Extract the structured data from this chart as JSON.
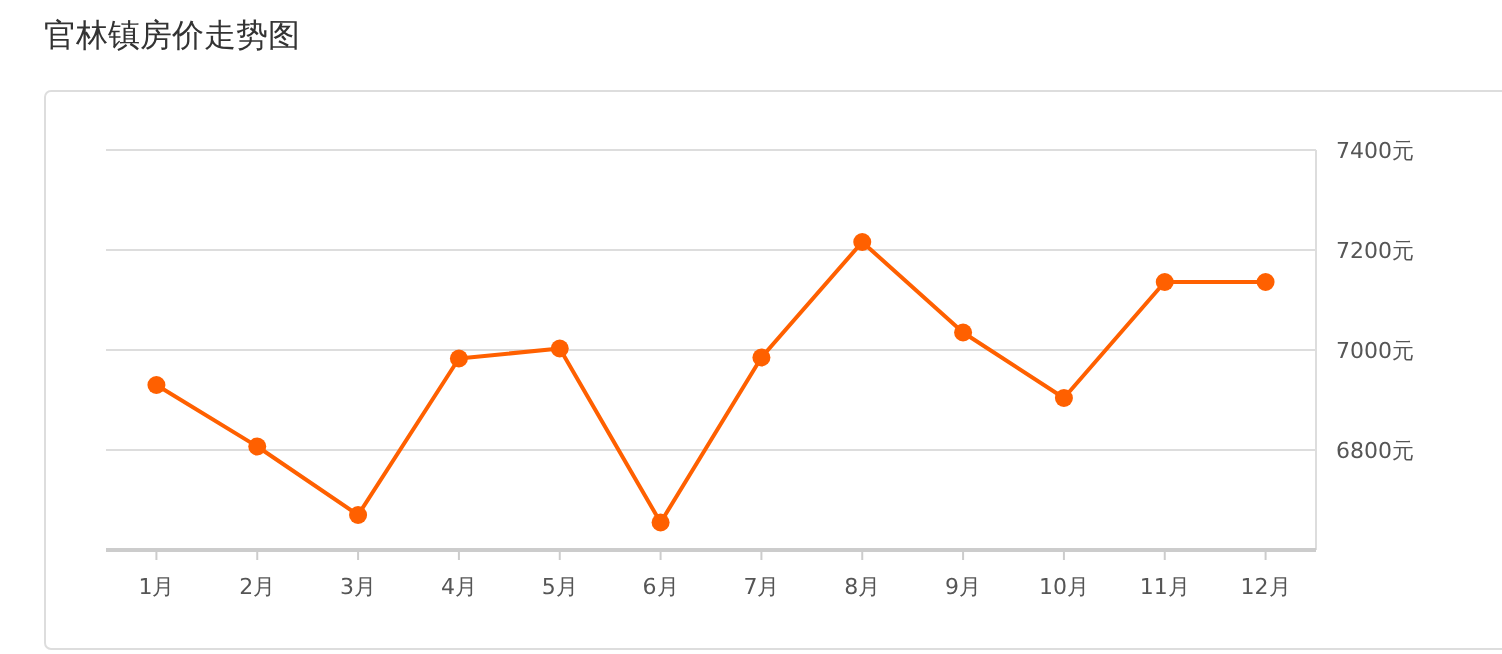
{
  "chart_data": {
    "type": "line",
    "title": "官林镇房价走势图",
    "categories": [
      "1月",
      "2月",
      "3月",
      "4月",
      "5月",
      "6月",
      "7月",
      "8月",
      "9月",
      "10月",
      "11月",
      "12月"
    ],
    "series": [
      {
        "color": "#ff6000",
        "values": [
          6930,
          6807,
          6670,
          6983,
          7003,
          6655,
          6985,
          7216,
          7035,
          6904,
          7136,
          7136
        ]
      }
    ],
    "ylim": [
      6600,
      7400
    ],
    "yticks": [
      {
        "value": 6800,
        "label": "6800元"
      },
      {
        "value": 7000,
        "label": "7000元"
      },
      {
        "value": 7200,
        "label": "7200元"
      },
      {
        "value": 7400,
        "label": "7400元"
      }
    ],
    "grid": "y",
    "marker": "circle"
  }
}
